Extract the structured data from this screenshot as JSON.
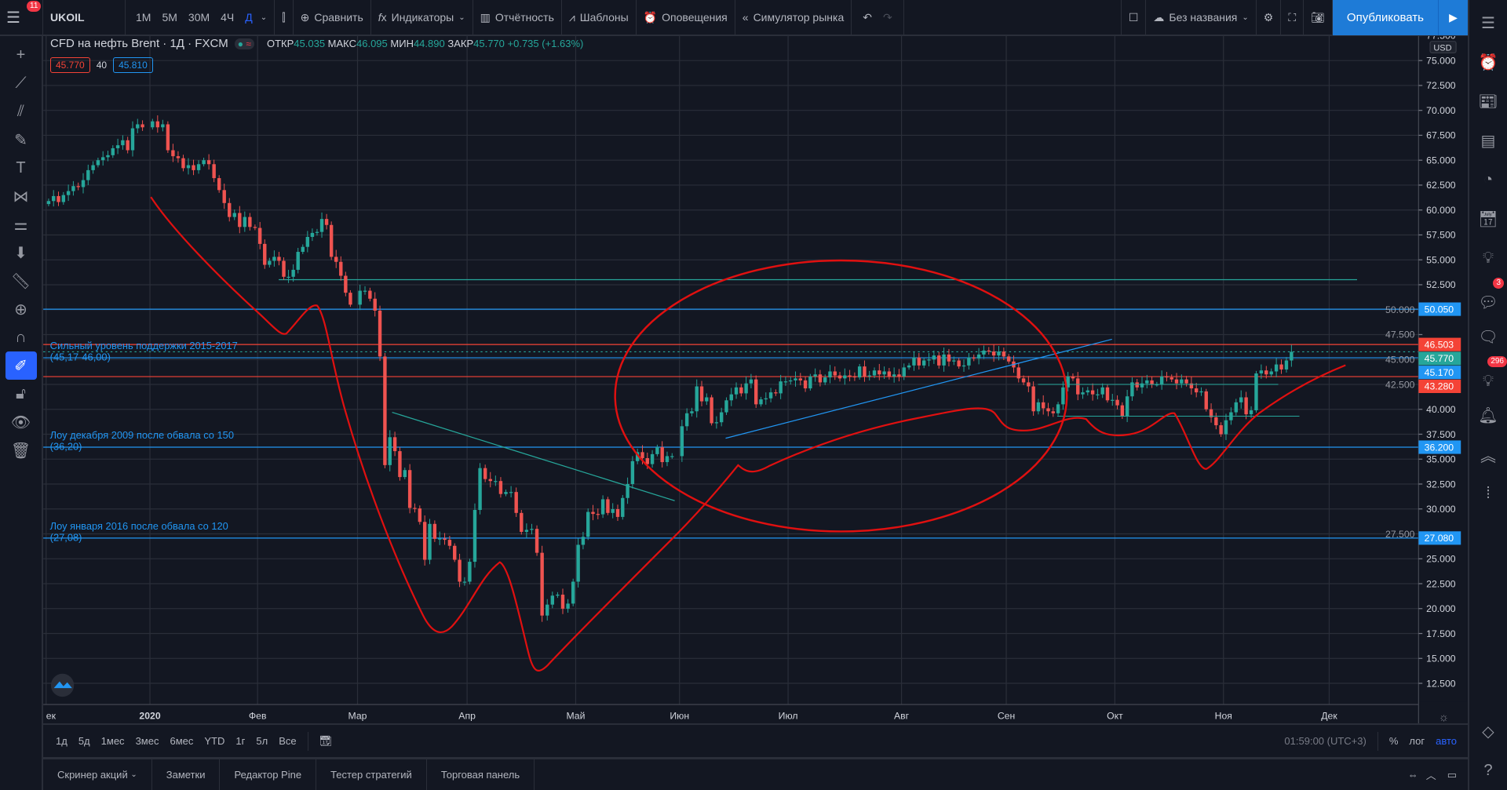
{
  "toolbar": {
    "menu_badge": "11",
    "symbol": "UKOIL",
    "timeframes": [
      "1М",
      "5М",
      "30М",
      "4Ч",
      "Д"
    ],
    "active_timeframe": "Д",
    "compare": "Сравнить",
    "indicators": "Индикаторы",
    "financials": "Отчётность",
    "templates": "Шаблоны",
    "alerts": "Оповещения",
    "replay": "Симулятор рынка",
    "layout_name": "Без названия",
    "publish": "Опубликовать"
  },
  "legend": {
    "title": "CFD на нефть Brent · 1Д · FXCM",
    "open_label": "ОТКР",
    "open": "45.035",
    "high_label": "МАКС",
    "high": "46.095",
    "low_label": "МИН",
    "low": "44.890",
    "close_label": "ЗАКР",
    "close": "45.770",
    "change": "+0.735 (+1.63%)",
    "bid": "45.770",
    "spread": "40",
    "ask": "45.810"
  },
  "price_axis": {
    "currency": "USD",
    "ticks": [
      "77.500",
      "75.000",
      "72.500",
      "70.000",
      "67.500",
      "65.000",
      "62.500",
      "60.000",
      "57.500",
      "55.000",
      "52.500",
      "50.000",
      "47.500",
      "45.000",
      "42.500",
      "40.000",
      "37.500",
      "35.000",
      "32.500",
      "30.000",
      "27.500",
      "25.000",
      "22.500",
      "20.000",
      "17.500",
      "15.000",
      "12.500"
    ],
    "tags": [
      {
        "price": 50.05,
        "label": "50.050",
        "color": "#2196f3"
      },
      {
        "price": 46.503,
        "label": "46.503",
        "color": "#f44336"
      },
      {
        "price": 45.77,
        "label": "45.770",
        "color": "#26a69a"
      },
      {
        "price": 45.17,
        "label": "45.170",
        "color": "#2196f3"
      },
      {
        "price": 43.28,
        "label": "43.280",
        "color": "#f44336"
      },
      {
        "price": 36.2,
        "label": "36.200",
        "color": "#2196f3"
      },
      {
        "price": 27.08,
        "label": "27.080",
        "color": "#2196f3"
      }
    ]
  },
  "time_axis": {
    "labels": [
      "ек",
      "2020",
      "Фев",
      "Мар",
      "Апр",
      "Май",
      "Июн",
      "Июл",
      "Авг",
      "Сен",
      "Окт",
      "Ноя",
      "Дек"
    ]
  },
  "annotations": [
    {
      "line1": "Сильный уровень поддержки 2015-2017",
      "line2": "(45,17-46,00)",
      "price": 45.17
    },
    {
      "line1": "Лоу декабря 2009 после обвала со 150",
      "line2": "(36,20)",
      "price": 36.2
    },
    {
      "line1": "Лоу января 2016 после обвала со 120",
      "line2": "(27,08)",
      "price": 27.08
    }
  ],
  "chart_data": {
    "type": "candlestick",
    "symbol": "UKOIL",
    "ylim": [
      11,
      78
    ],
    "months": [
      [
        60.9,
        61.4,
        60.8,
        61.5,
        61.9,
        62.4,
        62.3,
        63.0,
        64.0,
        64.5,
        65.0,
        65.3,
        65.5,
        66.2,
        66.5,
        67,
        66,
        68.2,
        68.6,
        68.3
      ],
      [
        68.9,
        68.3,
        68.6,
        66,
        65.4,
        65.2,
        64.2,
        64.5,
        64,
        64.6,
        65,
        64.6,
        63.2,
        62,
        60.7,
        59.3,
        59.7,
        58.3,
        59.3,
        58.3,
        58.2
      ],
      [
        56.6,
        54.5,
        54.9,
        55.3,
        54.9,
        53.3,
        53.3,
        54,
        55.8,
        56.3,
        57.3,
        57.7,
        57.8,
        59.1,
        58.5,
        55.3,
        54.8,
        53.4,
        51.7,
        50.5
      ],
      [
        51.9,
        51.9,
        51.1,
        49.9,
        45.3,
        34.4,
        37.2,
        35.8,
        33.2,
        33.9,
        30.1,
        30.05,
        28.7,
        24.9,
        28.5,
        27,
        27.03,
        26.9,
        26.3,
        24.9,
        22.7,
        22.7
      ],
      [
        24.7,
        29.9,
        34.1,
        33,
        32.8,
        32.8,
        31.5,
        31.7,
        31.7,
        29.6,
        27.7,
        27.9,
        28,
        25.6,
        19.3,
        20.4,
        21.3,
        21.4,
        19.99,
        20.5,
        22.7
      ],
      [
        26.4,
        27.2,
        29.7,
        29.5,
        29.46,
        30.97,
        29.6,
        29.98,
        29.2,
        31.1,
        32.5,
        34.8,
        35.7,
        35.1,
        34.5,
        35.5,
        36.2,
        34.7,
        35.3,
        35.3
      ],
      [
        38.3,
        39.6,
        39.8,
        42.3,
        40.8,
        41.2,
        38.6,
        38.7,
        39.7,
        40.9,
        41.5,
        42.2,
        41.6,
        42.6,
        43,
        40.5,
        41,
        41.1,
        41.7,
        41.6,
        42.8,
        42.8
      ],
      [
        42.9,
        43.1,
        42.9,
        42.1,
        43.3,
        43.5,
        42.7,
        43.2,
        43.8,
        43.4,
        43.1,
        43.4,
        43.3,
        43.2,
        44.3,
        43.3,
        43.4,
        43.9,
        43.5,
        43.8,
        43.3,
        43.5,
        43.3
      ],
      [
        44.2,
        44.4,
        45.2,
        44.4,
        44.9,
        45,
        45.4,
        44.4,
        45.5,
        44.8,
        44.9,
        44.3,
        44.4,
        45.2,
        45.1,
        45.5,
        45.9,
        45.8,
        45.4,
        45.8,
        45.3
      ],
      [
        44.8,
        44.2,
        43.1,
        42.7,
        42.3,
        39.8,
        40.7,
        40.1,
        39.8,
        39.6,
        40.5,
        42.2,
        43.3,
        43.1,
        41.5,
        41.7,
        41.9,
        41.5,
        41.5,
        42.2,
        40.9,
        40.95
      ],
      [
        40.4,
        39.3,
        41.3,
        42.7,
        42.2,
        42.6,
        42.9,
        42.5,
        42.5,
        43.3,
        43.2,
        43,
        42.6,
        43,
        42.6,
        42.1,
        41.7,
        41.8,
        40,
        39.2,
        38.4,
        37.5
      ],
      [
        38.9,
        39.7,
        40.7,
        41.2,
        39.5,
        39.9,
        43.6,
        43.9,
        43.5,
        43.8,
        44.5,
        44,
        44.9,
        45.77
      ]
    ],
    "up_color": "#26a69a",
    "down_color": "#ef5350"
  },
  "range_bar": {
    "ranges": [
      "1д",
      "5д",
      "1мес",
      "3мес",
      "6мес",
      "YTD",
      "1г",
      "5л",
      "Все"
    ],
    "clock": "01:59:00 (UTC+3)",
    "percent": "%",
    "log": "лог",
    "auto": "авто"
  },
  "bottom_tabs": [
    "Скринер акций",
    "Заметки",
    "Редактор Pine",
    "Тестер стратегий",
    "Торговая панель"
  ],
  "sidebar": {
    "chat_badge": "3",
    "ideas_badge": "296"
  }
}
